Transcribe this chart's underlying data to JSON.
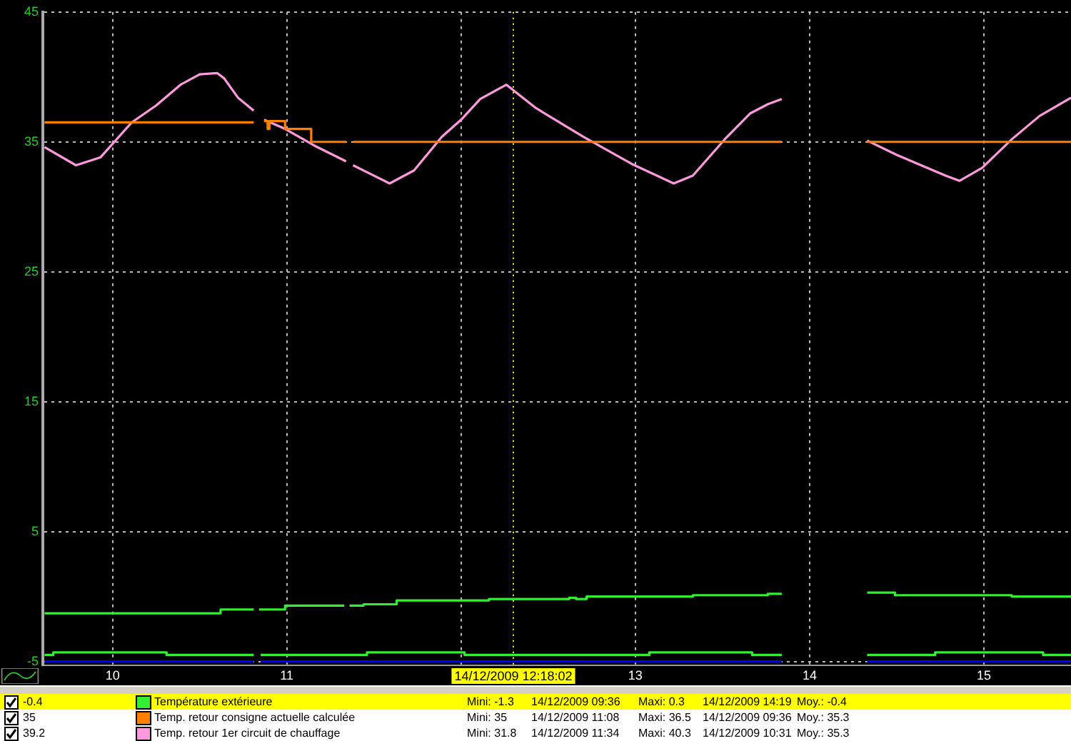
{
  "chart_data": {
    "type": "line",
    "xlim": [
      9.6,
      15.5
    ],
    "ylim": [
      -5.3,
      45
    ],
    "xticks": [
      10,
      11,
      {
        "value": 12,
        "label": null
      },
      13,
      14,
      15
    ],
    "yticks": [
      -5,
      5,
      15,
      25,
      35,
      45
    ],
    "grid": true,
    "legend": "bottom",
    "marker": "none",
    "line_style": "solid",
    "ref_lines": [
      {
        "axis": "x",
        "value": 12.3,
        "label": "14/12/2009 12:18:02",
        "color": "#ffff00",
        "line_style": "dotted"
      }
    ],
    "series": [
      {
        "name": "Température extérieure",
        "type": "step",
        "color": "#33ee33",
        "x": [
          9.61,
          10.62,
          10.81,
          10.82,
          10.84,
          10.99,
          11.33,
          11.34,
          11.36,
          11.44,
          11.63,
          12.16,
          12.62,
          12.66,
          12.72,
          13.33,
          13.76,
          13.84,
          14.0,
          14.33,
          14.49,
          15.16,
          15.5
        ],
        "values": [
          -1.3,
          -1.0,
          -1.0,
          null,
          -1.0,
          -0.7,
          -0.7,
          null,
          -0.7,
          -0.6,
          -0.3,
          -0.2,
          -0.1,
          -0.2,
          0.0,
          0.1,
          0.2,
          0.2,
          null,
          0.3,
          0.1,
          0.0,
          0.0
        ]
      },
      {
        "name": "Temp. retour consigne actuelle calculée",
        "type": "step",
        "color": "#ff8000",
        "x": [
          9.61,
          10.81,
          10.84,
          10.87,
          10.89,
          10.9,
          10.99,
          11.14,
          11.34,
          11.36,
          11.38,
          13.84,
          14.0,
          14.33,
          15.5
        ],
        "values": [
          36.5,
          36.5,
          null,
          36.6,
          36.0,
          36.6,
          36.0,
          35,
          35,
          null,
          35,
          35,
          null,
          35,
          35
        ]
      },
      {
        "name": "Temp. retour 1er circuit de chauffage",
        "type": "line",
        "color": "#ff99dd",
        "x": [
          9.61,
          9.79,
          9.93,
          10.11,
          10.25,
          10.39,
          10.5,
          10.6,
          10.64,
          10.72,
          10.81,
          10.84,
          10.87,
          10.99,
          11.16,
          11.34,
          11.36,
          11.38,
          11.59,
          11.73,
          11.89,
          12.0,
          12.11,
          12.26,
          12.43,
          12.7,
          12.98,
          13.22,
          13.33,
          13.52,
          13.66,
          13.76,
          13.84,
          14.0,
          14.33,
          14.5,
          14.78,
          14.86,
          14.99,
          15.16,
          15.32,
          15.5
        ],
        "values": [
          34.6,
          33.2,
          33.8,
          36.5,
          37.8,
          39.4,
          40.2,
          40.3,
          39.9,
          38.4,
          37.4,
          null,
          36.7,
          36.0,
          34.7,
          33.5,
          null,
          33.2,
          31.8,
          32.8,
          35.4,
          36.7,
          38.3,
          39.4,
          37.6,
          35.4,
          33.3,
          31.8,
          32.4,
          35.3,
          37.2,
          37.9,
          38.3,
          null,
          35.1,
          34.0,
          32.4,
          32.0,
          33.0,
          35.2,
          37.0,
          38.4
        ]
      },
      {
        "type": "step",
        "color": "#33ee33",
        "x": [
          9.61,
          9.66,
          10.31,
          10.81,
          10.83,
          10.85,
          11.46,
          12.02,
          13.08,
          13.67,
          13.84,
          14.0,
          14.33,
          14.72,
          15.34,
          15.5
        ],
        "values": [
          -4.5,
          -4.3,
          -4.5,
          -4.5,
          null,
          -4.5,
          -4.3,
          -4.5,
          -4.3,
          -4.5,
          -4.5,
          null,
          -4.5,
          -4.3,
          -4.5,
          -4.5
        ]
      },
      {
        "type": "line",
        "color": "#0000ff",
        "x": [
          9.61,
          10.81,
          10.83,
          10.85,
          13.84,
          14.0,
          14.33,
          15.5
        ],
        "values": [
          -5.0,
          -5.0,
          null,
          -5.0,
          -5.0,
          null,
          -5.0,
          -5.0
        ]
      }
    ],
    "annotations": [
      "-0.4",
      "Mini: -1.3",
      "14/12/2009 09:36",
      "Maxi: 0.3",
      "14/12/2009 14:19",
      "Moy.: -0.4",
      "35",
      "Mini: 35",
      "14/12/2009 11:08",
      "Maxi: 36.5",
      "14/12/2009 09:36",
      "Moy.: 35.3",
      "39.2",
      "Mini: 31.8",
      "14/12/2009 11:34",
      "Maxi: 40.3",
      "14/12/2009 10:31",
      "Moy.: 35.3"
    ]
  }
}
